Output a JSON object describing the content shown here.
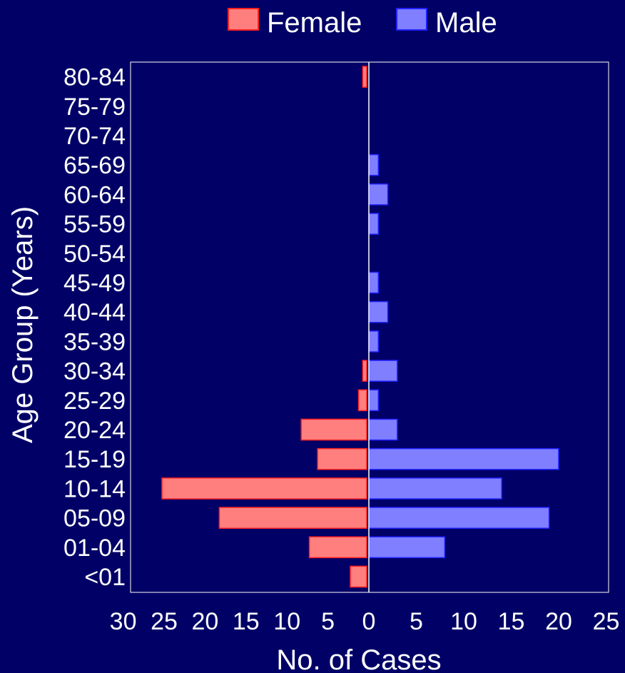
{
  "chart_data": {
    "type": "bar",
    "orientation": "horizontal-population-pyramid",
    "xlabel": "No. of Cases",
    "ylabel": "Age Group (Years)",
    "categories": [
      "<01",
      "01-04",
      "05-09",
      "10-14",
      "15-19",
      "20-24",
      "25-29",
      "30-34",
      "35-39",
      "40-44",
      "45-49",
      "50-54",
      "55-59",
      "60-64",
      "65-69",
      "70-74",
      "75-79",
      "80-84"
    ],
    "series": [
      {
        "name": "Female",
        "color": "#ff7f7f",
        "stroke": "#ff2020",
        "values": [
          2,
          7,
          18,
          25,
          6,
          8,
          1,
          0.5,
          0,
          0,
          0,
          0,
          0,
          0,
          0,
          0,
          0,
          0.5
        ]
      },
      {
        "name": "Male",
        "color": "#7f7fff",
        "stroke": "#2020ff",
        "values": [
          0,
          8,
          19,
          14,
          20,
          3,
          1,
          3,
          1,
          2,
          1,
          0,
          1,
          2,
          1,
          0,
          0,
          0
        ]
      }
    ],
    "xlim_female": [
      30,
      0
    ],
    "xlim_male": [
      0,
      25
    ],
    "female_ticks": [
      "30",
      "25",
      "20",
      "15",
      "10",
      "5"
    ],
    "zero_tick": "0",
    "male_ticks": [
      "5",
      "10",
      "15",
      "20",
      "25"
    ],
    "legend_position": "top-center",
    "grid": false,
    "background": "#000066"
  }
}
